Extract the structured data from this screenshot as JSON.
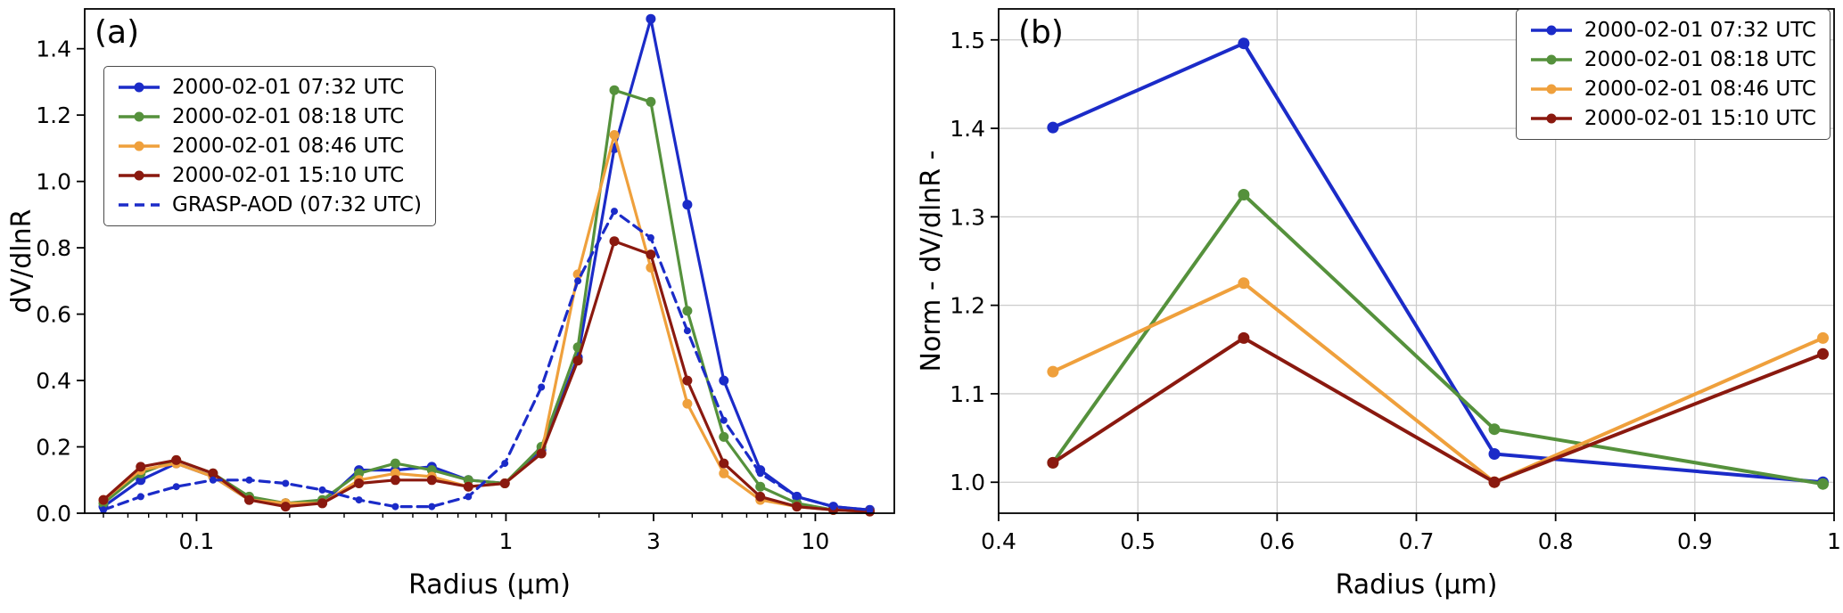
{
  "figure": {
    "background": "#ffffff",
    "colors": {
      "blue": "#1b2bc8",
      "green": "#55913c",
      "orange": "#efa03c",
      "darkred": "#8a190f",
      "grid": "#cccccc",
      "axis": "#000000"
    }
  },
  "chart_data": [
    {
      "id": "panel-a",
      "type": "line",
      "panel_label": "(a)",
      "xlabel": "Radius (µm)",
      "ylabel": "dV/dlnR",
      "xscale": "log",
      "xlim": [
        0.0435,
        18
      ],
      "ylim": [
        0,
        1.52
      ],
      "grid": false,
      "legend_position": "upper-left",
      "xticks": [
        0.1,
        1,
        3,
        10
      ],
      "xtick_labels": [
        "0.1",
        "1",
        "3",
        "10"
      ],
      "yticks": [
        0,
        0.2,
        0.4,
        0.6,
        0.8,
        1.0,
        1.2,
        1.4
      ],
      "ytick_labels": [
        "0.0",
        "0.2",
        "0.4",
        "0.6",
        "0.8",
        "1.0",
        "1.2",
        "1.4"
      ],
      "x": [
        0.05,
        0.066,
        0.086,
        0.113,
        0.148,
        0.194,
        0.255,
        0.335,
        0.439,
        0.576,
        0.756,
        0.992,
        1.302,
        1.708,
        2.241,
        2.94,
        3.857,
        5.061,
        6.641,
        8.713,
        11.432,
        15.0
      ],
      "series": [
        {
          "name": "2000-02-01 07:32 UTC",
          "color": "blue",
          "style": "solid",
          "marker": true,
          "values": [
            0.02,
            0.1,
            0.15,
            0.11,
            0.04,
            0.03,
            0.03,
            0.13,
            0.13,
            0.14,
            0.1,
            0.09,
            0.19,
            0.47,
            1.1,
            1.49,
            0.93,
            0.4,
            0.13,
            0.05,
            0.02,
            0.01
          ]
        },
        {
          "name": "2000-02-01 08:18 UTC",
          "color": "green",
          "style": "solid",
          "marker": true,
          "values": [
            0.03,
            0.12,
            0.16,
            0.12,
            0.05,
            0.03,
            0.04,
            0.12,
            0.15,
            0.13,
            0.1,
            0.09,
            0.2,
            0.5,
            1.275,
            1.24,
            0.61,
            0.23,
            0.08,
            0.03,
            0.01,
            0.005
          ]
        },
        {
          "name": "2000-02-01 08:46 UTC",
          "color": "orange",
          "style": "solid",
          "marker": true,
          "values": [
            0.04,
            0.13,
            0.15,
            0.11,
            0.04,
            0.03,
            0.03,
            0.1,
            0.12,
            0.11,
            0.08,
            0.09,
            0.18,
            0.72,
            1.14,
            0.74,
            0.33,
            0.12,
            0.04,
            0.02,
            0.01,
            0.005
          ]
        },
        {
          "name": "2000-02-01 15:10 UTC",
          "color": "darkred",
          "style": "solid",
          "marker": true,
          "values": [
            0.04,
            0.14,
            0.16,
            0.12,
            0.04,
            0.02,
            0.03,
            0.09,
            0.1,
            0.1,
            0.08,
            0.09,
            0.18,
            0.46,
            0.82,
            0.78,
            0.4,
            0.15,
            0.05,
            0.02,
            0.01,
            0.005
          ]
        },
        {
          "name": "GRASP-AOD (07:32 UTC)",
          "color": "blue",
          "style": "dashed",
          "marker": true,
          "values": [
            0.01,
            0.05,
            0.08,
            0.1,
            0.1,
            0.09,
            0.07,
            0.04,
            0.02,
            0.02,
            0.05,
            0.15,
            0.38,
            0.7,
            0.91,
            0.83,
            0.55,
            0.28,
            0.12,
            0.05,
            0.02,
            0.01
          ]
        }
      ]
    },
    {
      "id": "panel-b",
      "type": "line",
      "panel_label": "(b)",
      "xlabel": "Radius (µm)",
      "ylabel": "Norm - dV/dlnR -",
      "xscale": "linear",
      "xlim": [
        0.4,
        1.0
      ],
      "ylim": [
        0.965,
        1.535
      ],
      "grid": true,
      "legend_position": "upper-right",
      "xticks": [
        0.4,
        0.5,
        0.6,
        0.7,
        0.8,
        0.9,
        1.0
      ],
      "xtick_labels": [
        "0.4",
        "0.5",
        "0.6",
        "0.7",
        "0.8",
        "0.9",
        "1"
      ],
      "yticks": [
        1.0,
        1.1,
        1.2,
        1.3,
        1.4,
        1.5
      ],
      "ytick_labels": [
        "1.0",
        "1.1",
        "1.2",
        "1.3",
        "1.4",
        "1.5"
      ],
      "x": [
        0.439,
        0.576,
        0.756,
        0.992
      ],
      "series": [
        {
          "name": "2000-02-01 07:32 UTC",
          "color": "blue",
          "style": "solid",
          "marker": true,
          "values": [
            1.401,
            1.496,
            1.032,
            1.0
          ]
        },
        {
          "name": "2000-02-01 08:18 UTC",
          "color": "green",
          "style": "solid",
          "marker": true,
          "values": [
            1.022,
            1.325,
            1.06,
            0.998
          ]
        },
        {
          "name": "2000-02-01 08:46 UTC",
          "color": "orange",
          "style": "solid",
          "marker": true,
          "values": [
            1.125,
            1.225,
            1.0,
            1.163
          ]
        },
        {
          "name": "2000-02-01 15:10 UTC",
          "color": "darkred",
          "style": "solid",
          "marker": true,
          "values": [
            1.022,
            1.163,
            1.0,
            1.145
          ]
        }
      ]
    }
  ]
}
